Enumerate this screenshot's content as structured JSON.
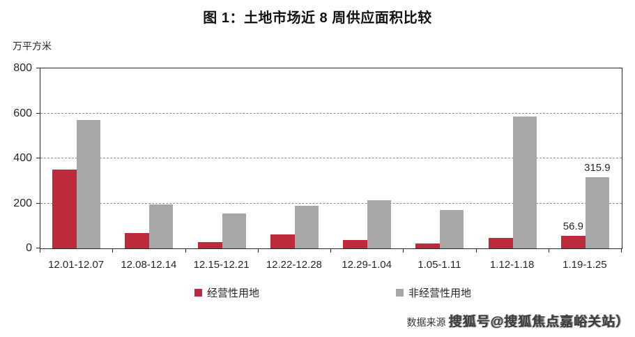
{
  "page": {
    "title": "图 1：土地市场近 8 周供应面积比较"
  },
  "chart_data": {
    "type": "bar",
    "title": "图 1：土地市场近 8 周供应面积比较",
    "ylabel_unit": "万平方米",
    "categories": [
      "12.01-12.07",
      "12.08-12.14",
      "12.15-12.21",
      "12.22-12.28",
      "12.29-1.04",
      "1.05-1.11",
      "1.12-1.18",
      "1.19-1.25"
    ],
    "series": [
      {
        "name": "经营性用地",
        "color": "#bd2a3c",
        "values": [
          350,
          68,
          27,
          62,
          37,
          23,
          46,
          56.9
        ],
        "data_labels": [
          null,
          null,
          null,
          null,
          null,
          null,
          null,
          "56.9"
        ]
      },
      {
        "name": "非经营性用地",
        "color": "#a7a7a7",
        "values": [
          570,
          195,
          155,
          190,
          215,
          170,
          585,
          315.9
        ],
        "data_labels": [
          null,
          null,
          null,
          null,
          null,
          null,
          null,
          "315.9"
        ]
      }
    ],
    "ylim": [
      0,
      800
    ],
    "yticks": [
      0,
      200,
      400,
      600,
      800
    ],
    "grid": "horizontal dashed at 200/400/600",
    "legend_position": "bottom"
  },
  "legend": {
    "items": [
      {
        "label": "经营性用地",
        "color": "#bd2a3c"
      },
      {
        "label": "非经营性用地",
        "color": "#a7a7a7"
      }
    ]
  },
  "footer": {
    "source_label": "数据来源",
    "watermark": "搜狐号@搜狐焦点嘉峪关站）"
  }
}
